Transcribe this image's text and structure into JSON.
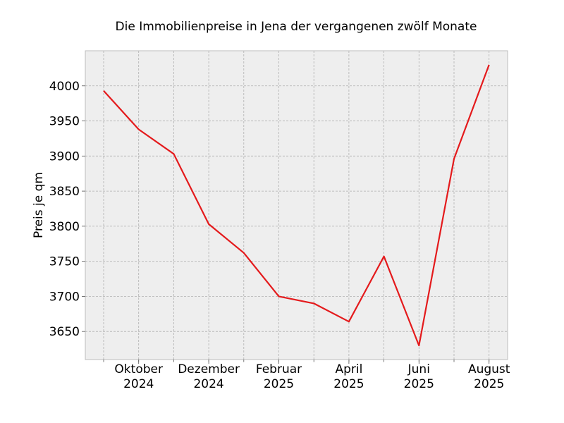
{
  "chart_data": {
    "type": "line",
    "title": "Die Immobilienpreise in Jena der vergangenen zwölf Monate",
    "xlabel": "",
    "ylabel": "Preis je qm",
    "x": [
      "2024-09",
      "2024-10",
      "2024-11",
      "2024-12",
      "2025-01",
      "2025-02",
      "2025-03",
      "2025-04",
      "2025-05",
      "2025-06",
      "2025-07",
      "2025-08"
    ],
    "series": [
      {
        "values": [
          3993,
          3938,
          3903,
          3803,
          3762,
          3700,
          3690,
          3664,
          3757,
          3630,
          3896,
          4030
        ]
      }
    ],
    "ylim": [
      3610,
      4050
    ],
    "yticks": [
      "3650",
      "3700",
      "3750",
      "3800",
      "3850",
      "3900",
      "3950",
      "4000"
    ],
    "xticks": [
      {
        "x": "2024-10",
        "line1": "Oktober",
        "line2": "2024"
      },
      {
        "x": "2024-12",
        "line1": "Dezember",
        "line2": "2024"
      },
      {
        "x": "2025-02",
        "line1": "Februar",
        "line2": "2025"
      },
      {
        "x": "2025-04",
        "line1": "April",
        "line2": "2025"
      },
      {
        "x": "2025-06",
        "line1": "Juni",
        "line2": "2025"
      },
      {
        "x": "2025-08",
        "line1": "August",
        "line2": "2025"
      }
    ],
    "grid": true,
    "line_color": "#e41a1c",
    "plot_background": "#eeeeee"
  }
}
